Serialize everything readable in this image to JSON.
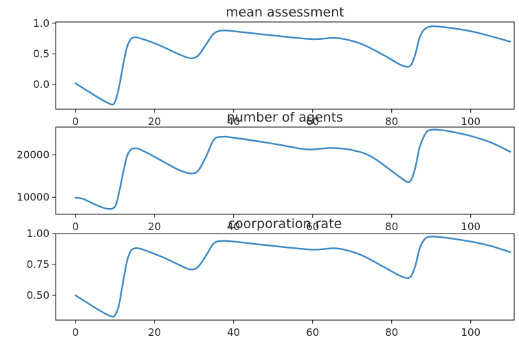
{
  "figure": {
    "background": "#ffffff",
    "line_color": "#3a87c4"
  },
  "chart_data": [
    {
      "type": "line",
      "title": "mean assessment",
      "xlabel": "",
      "ylabel": "",
      "xlim": [
        -5,
        111
      ],
      "ylim": [
        -0.4,
        1.02
      ],
      "xticks": [
        0,
        20,
        40,
        60,
        80,
        100
      ],
      "xtick_labels": [
        "0",
        "20",
        "40",
        "60",
        "80",
        "100"
      ],
      "yticks": [
        0.0,
        0.5,
        1.0
      ],
      "ytick_labels": [
        "0.0",
        "0.5",
        "1.0"
      ],
      "grid": false,
      "series": [
        {
          "x": [
            0,
            3,
            6,
            9,
            10,
            11,
            12,
            13,
            14,
            15,
            16,
            18,
            22,
            26,
            29,
            31,
            33,
            35,
            37,
            40,
            50,
            60,
            66,
            72,
            78,
            82,
            84,
            85,
            86,
            87,
            88,
            89,
            90,
            91,
            94,
            100,
            105,
            110
          ],
          "y": [
            0.02,
            -0.1,
            -0.22,
            -0.32,
            -0.28,
            -0.05,
            0.3,
            0.6,
            0.74,
            0.77,
            0.76,
            0.72,
            0.62,
            0.5,
            0.43,
            0.47,
            0.65,
            0.83,
            0.88,
            0.87,
            0.8,
            0.74,
            0.76,
            0.67,
            0.48,
            0.33,
            0.29,
            0.33,
            0.5,
            0.75,
            0.88,
            0.93,
            0.95,
            0.95,
            0.93,
            0.87,
            0.79,
            0.7
          ]
        }
      ]
    },
    {
      "type": "line",
      "title": "number of agents",
      "xlabel": "",
      "ylabel": "",
      "xlim": [
        -5,
        111
      ],
      "ylim": [
        6000,
        26500
      ],
      "xticks": [
        0,
        20,
        40,
        60,
        80,
        100
      ],
      "xtick_labels": [
        "0",
        "20",
        "40",
        "60",
        "80",
        "100"
      ],
      "yticks": [
        10000,
        20000
      ],
      "ytick_labels": [
        "10000",
        "20000"
      ],
      "grid": false,
      "series": [
        {
          "x": [
            0,
            2,
            5,
            8,
            10,
            11,
            12,
            13,
            14,
            15,
            16,
            18,
            22,
            26,
            29,
            31,
            33,
            35,
            37,
            40,
            50,
            58,
            62,
            65,
            70,
            75,
            82,
            84,
            85,
            86,
            87,
            88,
            89,
            90,
            91,
            94,
            100,
            105,
            110
          ],
          "y": [
            9900,
            9600,
            8300,
            7300,
            7800,
            11000,
            15500,
            19500,
            21200,
            21500,
            21400,
            20500,
            18500,
            16500,
            15600,
            16200,
            19500,
            23500,
            24200,
            24000,
            22600,
            21300,
            21400,
            21600,
            21100,
            19500,
            14800,
            13600,
            14200,
            17000,
            21500,
            24000,
            25500,
            25800,
            25900,
            25600,
            24400,
            22900,
            20700
          ]
        }
      ]
    },
    {
      "type": "line",
      "title": "coorporation rate",
      "xlabel": "",
      "ylabel": "",
      "xlim": [
        -5,
        111
      ],
      "ylim": [
        0.3,
        1.0
      ],
      "xticks": [
        0,
        20,
        40,
        60,
        80,
        100
      ],
      "xtick_labels": [
        "0",
        "20",
        "40",
        "60",
        "80",
        "100"
      ],
      "yticks": [
        0.5,
        0.75,
        1.0
      ],
      "ytick_labels": [
        "0.50",
        "0.75",
        "1.00"
      ],
      "grid": false,
      "series": [
        {
          "x": [
            0,
            3,
            6,
            9,
            10,
            11,
            12,
            13,
            14,
            15,
            16,
            18,
            22,
            26,
            29,
            31,
            33,
            35,
            37,
            40,
            50,
            60,
            66,
            72,
            78,
            82,
            84,
            85,
            86,
            87,
            88,
            89,
            90,
            91,
            94,
            100,
            105,
            110
          ],
          "y": [
            0.5,
            0.44,
            0.38,
            0.33,
            0.34,
            0.42,
            0.6,
            0.77,
            0.86,
            0.88,
            0.88,
            0.86,
            0.81,
            0.75,
            0.71,
            0.73,
            0.82,
            0.92,
            0.94,
            0.935,
            0.9,
            0.87,
            0.88,
            0.83,
            0.73,
            0.66,
            0.64,
            0.66,
            0.74,
            0.87,
            0.94,
            0.97,
            0.975,
            0.975,
            0.965,
            0.935,
            0.9,
            0.85
          ]
        }
      ]
    }
  ]
}
